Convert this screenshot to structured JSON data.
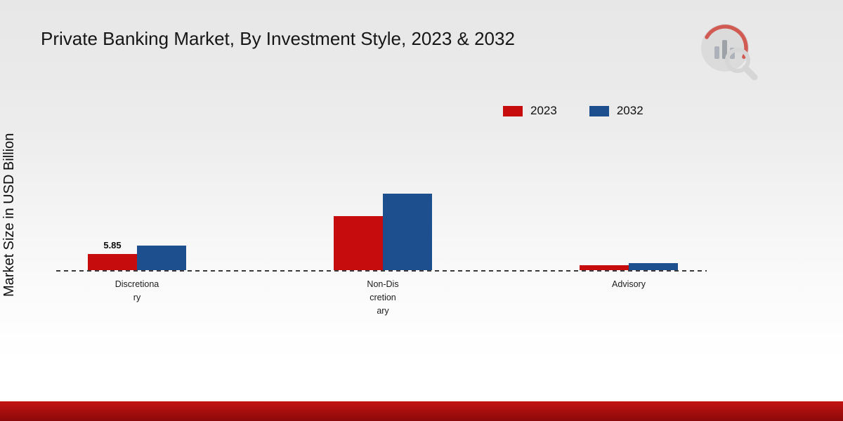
{
  "page": {
    "title": "Private Banking Market, By Investment Style, 2023 & 2032",
    "y_axis_label": "Market Size in USD Billion"
  },
  "legend": {
    "items": [
      {
        "label": "2023",
        "color": "#c60c0c"
      },
      {
        "label": "2032",
        "color": "#1d4f8f"
      }
    ]
  },
  "colors": {
    "series_2023": "#c60c0c",
    "series_2032": "#1d4f8f",
    "baseline": "#3a3a3a",
    "footer_top": "#c21313",
    "footer_bottom": "#8c0909",
    "background_top": "#e7e7e7",
    "background_bottom": "#ffffff"
  },
  "chart_data": {
    "type": "bar",
    "title": "Private Banking Market, By Investment Style, 2023 & 2032",
    "xlabel": "",
    "ylabel": "Market Size in USD Billion",
    "categories": [
      "Discretionary",
      "Non-Discretionary",
      "Advisory"
    ],
    "category_label_lines": [
      [
        "Discretiona",
        "ry"
      ],
      [
        "Non-Dis",
        "cretion",
        "ary"
      ],
      [
        "Advisory"
      ]
    ],
    "series": [
      {
        "name": "2023",
        "color": "#c60c0c",
        "values": [
          5.85,
          19.5,
          1.8
        ]
      },
      {
        "name": "2032",
        "color": "#1d4f8f",
        "values": [
          8.9,
          27.7,
          2.5
        ]
      }
    ],
    "data_labels": [
      {
        "series": "2023",
        "category": "Discretionary",
        "text": "5.85"
      }
    ],
    "ylim": [
      0,
      30
    ],
    "grid": false,
    "legend_position": "top-right",
    "baseline_style": "dashed"
  }
}
